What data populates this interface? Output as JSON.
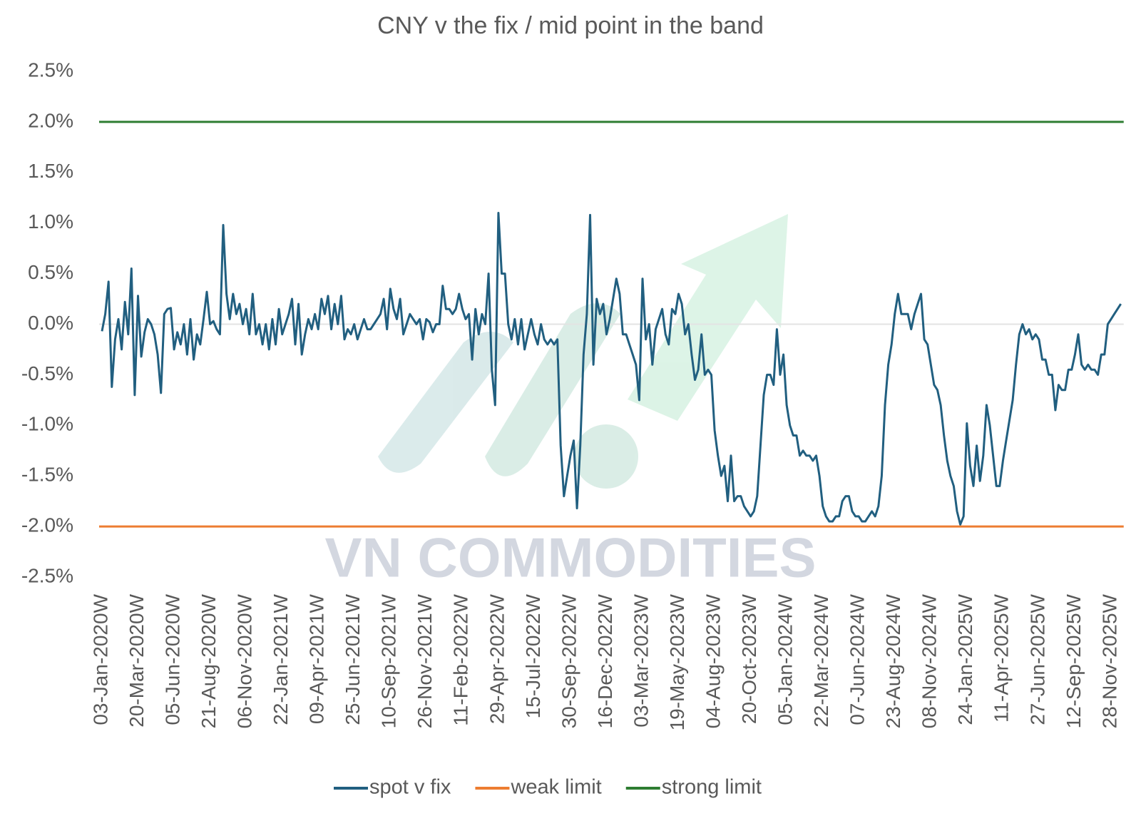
{
  "chart_data": {
    "type": "line",
    "title": "CNY v the fix / mid point in the band",
    "watermark": "VN COMMODITIES",
    "categories": [
      "03-Jan-2020W",
      null,
      null,
      null,
      null,
      null,
      null,
      null,
      null,
      null,
      null,
      "20-Mar-2020W",
      null,
      null,
      null,
      null,
      null,
      null,
      null,
      null,
      null,
      null,
      "05-Jun-2020W",
      null,
      null,
      null,
      null,
      null,
      null,
      null,
      null,
      null,
      null,
      "21-Aug-2020W",
      null,
      null,
      null,
      null,
      null,
      null,
      null,
      null,
      null,
      null,
      "06-Nov-2020W",
      null,
      null,
      null,
      null,
      null,
      null,
      null,
      null,
      null,
      null,
      "22-Jan-2021W",
      null,
      null,
      null,
      null,
      null,
      null,
      null,
      null,
      null,
      null,
      "09-Apr-2021W",
      null,
      null,
      null,
      null,
      null,
      null,
      null,
      null,
      null,
      null,
      "25-Jun-2021W",
      null,
      null,
      null,
      null,
      null,
      null,
      null,
      null,
      null,
      null,
      "10-Sep-2021W",
      null,
      null,
      null,
      null,
      null,
      null,
      null,
      null,
      null,
      null,
      "26-Nov-2021W",
      null,
      null,
      null,
      null,
      null,
      null,
      null,
      null,
      null,
      null,
      "11-Feb-2022W",
      null,
      null,
      null,
      null,
      null,
      null,
      null,
      null,
      null,
      null,
      "29-Apr-2022W",
      null,
      null,
      null,
      null,
      null,
      null,
      null,
      null,
      null,
      null,
      "15-Jul-2022W",
      null,
      null,
      null,
      null,
      null,
      null,
      null,
      null,
      null,
      null,
      "30-Sep-2022W",
      null,
      null,
      null,
      null,
      null,
      null,
      null,
      null,
      null,
      null,
      "16-Dec-2022W",
      null,
      null,
      null,
      null,
      null,
      null,
      null,
      null,
      null,
      null,
      "03-Mar-2023W",
      null,
      null,
      null,
      null,
      null,
      null,
      null,
      null,
      null,
      null,
      "19-May-2023W",
      null,
      null,
      null,
      null,
      null,
      null,
      null,
      null,
      null,
      null,
      "04-Aug-2023W",
      null,
      null,
      null,
      null,
      null,
      null,
      null,
      null,
      null,
      null,
      "20-Oct-2023W",
      null,
      null,
      null,
      null,
      null,
      null,
      null,
      null,
      null,
      null,
      "05-Jan-2024W",
      null,
      null,
      null,
      null,
      null,
      null,
      null,
      null,
      null,
      null,
      "22-Mar-2024W",
      null,
      null,
      null,
      null,
      null,
      null,
      null,
      null,
      null,
      null,
      "07-Jun-2024W",
      null,
      null,
      null,
      null,
      null,
      null,
      null,
      null,
      null,
      null,
      "23-Aug-2024W",
      null,
      null,
      null,
      null,
      null,
      null,
      null,
      null,
      null,
      null,
      "08-Nov-2024W",
      null,
      null,
      null,
      null,
      null,
      null,
      null,
      null,
      null,
      null,
      "24-Jan-2025W",
      null,
      null,
      null,
      null,
      null,
      null,
      null,
      null,
      null,
      null,
      "11-Apr-2025W",
      null,
      null,
      null,
      null,
      null,
      null,
      null,
      null,
      null,
      null,
      "27-Jun-2025W",
      null,
      null,
      null,
      null,
      null,
      null,
      null,
      null,
      null,
      null,
      "12-Sep-2025W",
      null,
      null,
      null,
      null,
      null,
      null,
      null,
      null,
      null,
      null,
      "28-Nov-2025W",
      null,
      null,
      null
    ],
    "series": [
      {
        "name": "spot v fix",
        "color": "#215f80",
        "values": [
          -0.07,
          0.1,
          0.42,
          -0.62,
          -0.15,
          0.05,
          -0.25,
          0.22,
          -0.1,
          0.55,
          -0.7,
          0.28,
          -0.32,
          -0.08,
          0.05,
          0.0,
          -0.1,
          -0.3,
          -0.68,
          0.1,
          0.15,
          0.16,
          -0.25,
          -0.08,
          -0.2,
          0.0,
          -0.3,
          0.05,
          -0.35,
          -0.1,
          -0.2,
          0.05,
          0.32,
          0.0,
          0.03,
          -0.05,
          -0.1,
          0.98,
          0.3,
          0.05,
          0.3,
          0.1,
          0.2,
          0.0,
          0.15,
          -0.1,
          0.3,
          -0.1,
          0.0,
          -0.2,
          0.0,
          -0.25,
          0.05,
          -0.2,
          0.15,
          -0.1,
          0.0,
          0.1,
          0.25,
          -0.2,
          0.2,
          -0.3,
          -0.1,
          0.05,
          -0.05,
          0.1,
          -0.05,
          0.25,
          0.1,
          0.28,
          -0.05,
          0.2,
          0.0,
          0.28,
          -0.15,
          -0.05,
          -0.1,
          0.0,
          -0.15,
          -0.05,
          0.05,
          -0.05,
          -0.05,
          0.0,
          0.05,
          0.1,
          0.25,
          -0.05,
          0.35,
          0.15,
          0.05,
          0.25,
          -0.1,
          0.0,
          0.1,
          0.05,
          0.0,
          0.05,
          -0.15,
          0.05,
          0.02,
          -0.08,
          0.0,
          0.0,
          0.38,
          0.15,
          0.15,
          0.1,
          0.15,
          0.3,
          0.15,
          0.05,
          0.1,
          -0.35,
          0.15,
          -0.1,
          0.1,
          0.0,
          0.5,
          -0.45,
          -0.8,
          1.1,
          0.5,
          0.5,
          0.0,
          -0.15,
          0.05,
          -0.2,
          0.05,
          -0.25,
          -0.1,
          0.05,
          -0.1,
          -0.2,
          0.0,
          -0.15,
          -0.2,
          -0.15,
          -0.2,
          -0.15,
          -1.2,
          -1.7,
          -1.5,
          -1.3,
          -1.15,
          -1.82,
          -1.2,
          -0.3,
          0.1,
          1.08,
          -0.4,
          0.25,
          0.1,
          0.2,
          -0.1,
          0.05,
          0.25,
          0.45,
          0.3,
          -0.1,
          -0.1,
          -0.2,
          -0.3,
          -0.4,
          -0.75,
          0.45,
          -0.15,
          0.0,
          -0.4,
          -0.05,
          0.05,
          0.15,
          -0.1,
          -0.2,
          0.15,
          0.1,
          0.3,
          0.2,
          -0.1,
          0.0,
          -0.3,
          -0.55,
          -0.45,
          -0.1,
          -0.5,
          -0.45,
          -0.5,
          -1.05,
          -1.3,
          -1.5,
          -1.4,
          -1.75,
          -1.3,
          -1.75,
          -1.7,
          -1.7,
          -1.8,
          -1.85,
          -1.9,
          -1.85,
          -1.7,
          -1.2,
          -0.7,
          -0.5,
          -0.5,
          -0.6,
          -0.05,
          -0.5,
          -0.3,
          -0.8,
          -1.0,
          -1.1,
          -1.1,
          -1.3,
          -1.25,
          -1.3,
          -1.3,
          -1.35,
          -1.3,
          -1.5,
          -1.8,
          -1.9,
          -1.95,
          -1.95,
          -1.9,
          -1.9,
          -1.75,
          -1.7,
          -1.7,
          -1.85,
          -1.9,
          -1.9,
          -1.95,
          -1.95,
          -1.9,
          -1.85,
          -1.9,
          -1.8,
          -1.5,
          -0.8,
          -0.4,
          -0.2,
          0.1,
          0.3,
          0.1,
          0.1,
          0.1,
          -0.05,
          0.1,
          0.2,
          0.3,
          -0.15,
          -0.2,
          -0.4,
          -0.6,
          -0.65,
          -0.8,
          -1.1,
          -1.35,
          -1.5,
          -1.6,
          -1.85,
          -1.98,
          -1.9,
          -0.98,
          -1.4,
          -1.6,
          -1.2,
          -1.55,
          -1.3,
          -0.8,
          -1.0,
          -1.3,
          -1.6,
          -1.6,
          -1.35,
          -1.15,
          -0.95,
          -0.75,
          -0.4,
          -0.1,
          0.0,
          -0.1,
          -0.05,
          -0.15,
          -0.1,
          -0.15,
          -0.35,
          -0.35,
          -0.5,
          -0.5,
          -0.85,
          -0.6,
          -0.65,
          -0.65,
          -0.45,
          -0.45,
          -0.3,
          -0.1,
          -0.4,
          -0.45,
          -0.4,
          -0.45,
          -0.45,
          -0.5,
          -0.3,
          -0.3,
          0.0,
          0.05,
          0.1,
          0.15,
          0.2
        ]
      }
    ],
    "limits": [
      {
        "name": "weak limit",
        "color": "#ed7d31",
        "value": -2
      },
      {
        "name": "strong limit",
        "color": "#2e7d32",
        "value": 2
      }
    ],
    "ylim": [
      -2.5,
      2.5
    ],
    "yticks": [
      {
        "value": 2.5,
        "label": "2.5%"
      },
      {
        "value": 2,
        "label": "2.0%"
      },
      {
        "value": 1.5,
        "label": "1.5%"
      },
      {
        "value": 1,
        "label": "1.0%"
      },
      {
        "value": 0.5,
        "label": "0.5%"
      },
      {
        "value": 0,
        "label": "0.0%"
      },
      {
        "value": -0.5,
        "label": "-0.5%"
      },
      {
        "value": -1,
        "label": "-1.0%"
      },
      {
        "value": -1.5,
        "label": "-1.5%"
      },
      {
        "value": -2,
        "label": "-2.0%"
      },
      {
        "value": -2.5,
        "label": "-2.5%"
      }
    ],
    "grid": false,
    "legend": "bottom"
  }
}
